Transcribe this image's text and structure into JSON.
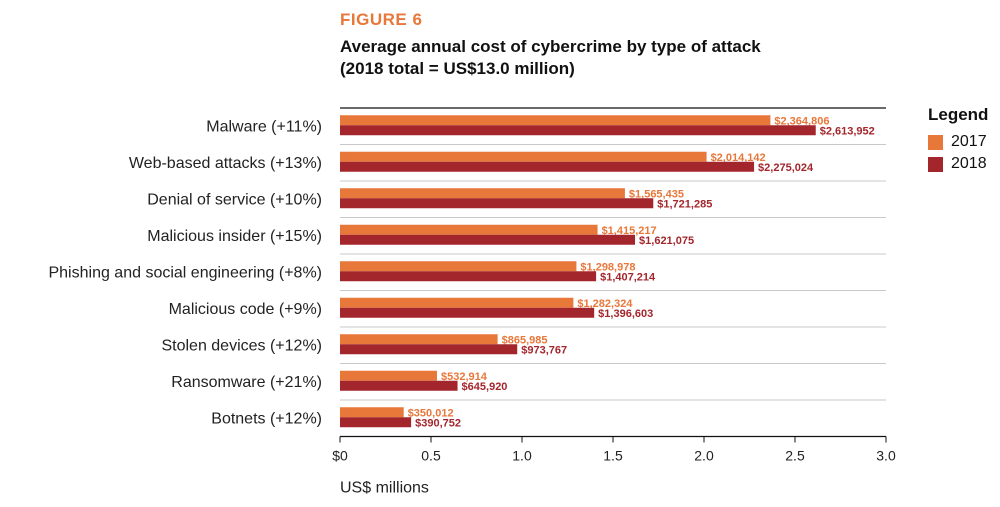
{
  "figure_label": "FIGURE 6",
  "title_line1": "Average annual cost of cybercrime by type of attack",
  "title_line2": "(2018 total = US$13.0 million)",
  "legend": {
    "title": "Legend",
    "items": [
      {
        "label": "2017",
        "color": "#e8773a"
      },
      {
        "label": "2018",
        "color": "#a3262c"
      }
    ]
  },
  "chart_data": {
    "type": "bar",
    "orientation": "horizontal",
    "title": "Average annual cost of cybercrime by type of attack",
    "subtitle": "(2018 total = US$13.0 million)",
    "xlabel": "US$ millions",
    "ylabel": "",
    "xlim": [
      0,
      3.0
    ],
    "xticks": [
      0,
      0.5,
      1.0,
      1.5,
      2.0,
      2.5,
      3.0
    ],
    "xtick_labels": [
      "$0",
      "0.5",
      "1.0",
      "1.5",
      "2.0",
      "2.5",
      "3.0"
    ],
    "legend_position": "right",
    "grid": "horizontal separators",
    "categories": [
      "Malware (+11%)",
      "Web-based attacks (+13%)",
      "Denial of service (+10%)",
      "Malicious insider (+15%)",
      "Phishing and social engineering (+8%)",
      "Malicious code (+9%)",
      "Stolen devices (+12%)",
      "Ransomware (+21%)",
      "Botnets (+12%)"
    ],
    "series": [
      {
        "name": "2017",
        "color": "#e8773a",
        "values": [
          2364806,
          2014142,
          1565435,
          1415217,
          1298978,
          1282324,
          865985,
          532914,
          350012
        ],
        "labels": [
          "$2,364,806",
          "$2,014,142",
          "$1,565,435",
          "$1,415,217",
          "$1,298,978",
          "$1,282,324",
          "$865,985",
          "$532,914",
          "$350,012"
        ]
      },
      {
        "name": "2018",
        "color": "#a3262c",
        "values": [
          2613952,
          2275024,
          1721285,
          1621075,
          1407214,
          1396603,
          973767,
          645920,
          390752
        ],
        "labels": [
          "$2,613,952",
          "$2,275,024",
          "$1,721,285",
          "$1,621,075",
          "$1,407,214",
          "$1,396,603",
          "$973,767",
          "$645,920",
          "$390,752"
        ]
      }
    ]
  }
}
